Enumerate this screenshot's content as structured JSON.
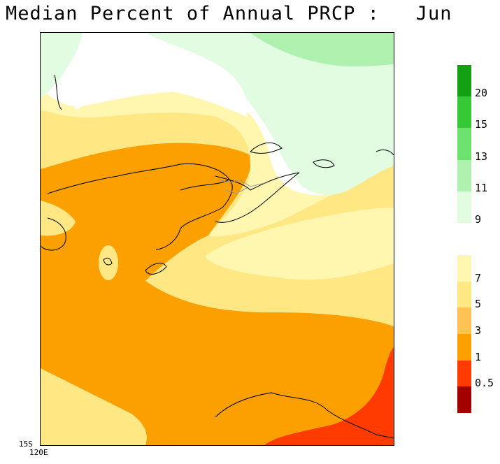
{
  "title": "Median Percent of Annual PRCP :   Jun",
  "map": {
    "corner_lat": "15S",
    "corner_lon": "120E"
  },
  "colorbar_upper": [
    {
      "label": "20",
      "color": "#13a113"
    },
    {
      "label": "15",
      "color": "#37c837"
    },
    {
      "label": "13",
      "color": "#6ee06e"
    },
    {
      "label": "11",
      "color": "#aef0ae"
    },
    {
      "label": "9",
      "color": "#e2fce2"
    }
  ],
  "colorbar_lower": [
    {
      "label": "7",
      "color": "#fff6b0"
    },
    {
      "label": "5",
      "color": "#ffe884"
    },
    {
      "label": "3",
      "color": "#fec255"
    },
    {
      "label": "1",
      "color": "#fba000"
    },
    {
      "label": "0.5",
      "color": "#ff3b00"
    },
    {
      "label": "",
      "color": "#a30000"
    }
  ],
  "palette": {
    "lightgreen": "#e2fce2",
    "green": "#aef0ae",
    "paleyellow": "#fff6b0",
    "yellow": "#ffe884",
    "orange": "#fba000",
    "red": "#ff3b00"
  }
}
